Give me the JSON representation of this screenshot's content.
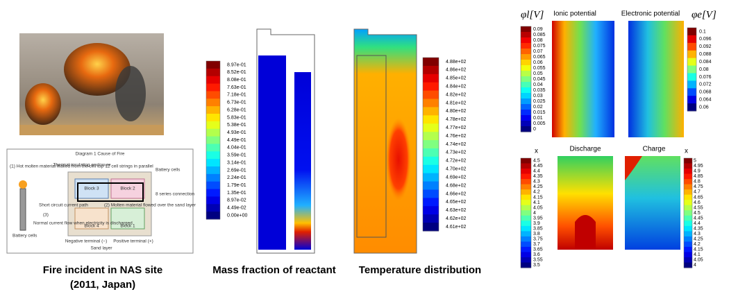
{
  "fire_photo_caption": [
    "Fire incident in NAS site",
    "(2011, Japan)"
  ],
  "diagram": {
    "title": "Diagram 1  Cause of Fire",
    "labels": [
      "(1) Hot molten material leaked from the cell top",
      "Thermal insulating enclosure",
      "12 cell strings in parallel",
      "Battery cells",
      "Block 3",
      "Block 2",
      "8 series connection",
      "Short circuit current path",
      "(3)",
      "(2) Molten material flowed over the sand layer",
      "Normal current flow when electricity is discharged",
      "Block 4",
      "Block 1",
      "Battery cells",
      "Negative terminal (−)",
      "Sand layer",
      "Positive terminal (+)"
    ]
  },
  "mass_fraction": {
    "caption": "Mass fraction of reactant",
    "colorbar": [
      "8.97e-01",
      "8.52e-01",
      "8.08e-01",
      "7.63e-01",
      "7.18e-01",
      "6.73e-01",
      "6.28e-01",
      "5.83e-01",
      "5.38e-01",
      "4.93e-01",
      "4.49e-01",
      "4.04e-01",
      "3.59e-01",
      "3.14e-01",
      "2.69e-01",
      "2.24e-01",
      "1.79e-01",
      "1.35e-01",
      "8.97e-02",
      "4.49e-02",
      "0.00e+00"
    ]
  },
  "temperature": {
    "caption": "Temperature distribution",
    "colorbar": [
      "4.88e+02",
      "4.86e+02",
      "4.85e+02",
      "4.84e+02",
      "4.82e+02",
      "4.81e+02",
      "4.80e+02",
      "4.78e+02",
      "4.77e+02",
      "4.76e+02",
      "4.74e+02",
      "4.73e+02",
      "4.72e+02",
      "4.70e+02",
      "4.69e+02",
      "4.68e+02",
      "4.66e+02",
      "4.65e+02",
      "4.63e+02",
      "4.62e+02",
      "4.61e+02"
    ]
  },
  "ionic_potential": {
    "title": "Ionic potential",
    "unit": "φl[V]",
    "colorbar": [
      "0.09",
      "0.085",
      "0.08",
      "0.075",
      "0.07",
      "0.065",
      "0.06",
      "0.055",
      "0.05",
      "0.045",
      "0.04",
      "0.035",
      "0.03",
      "0.025",
      "0.02",
      "0.015",
      "0.01",
      "0.005",
      "0"
    ]
  },
  "electronic_potential": {
    "title": "Electronic potential",
    "unit": "φe[V]",
    "colorbar": [
      "0.1",
      "0.096",
      "0.092",
      "0.088",
      "0.084",
      "0.08",
      "0.076",
      "0.072",
      "0.068",
      "0.064",
      "0.06"
    ]
  },
  "discharge": {
    "title": "Discharge",
    "unit": "x",
    "colorbar": [
      "4.5",
      "4.45",
      "4.4",
      "4.35",
      "4.3",
      "4.25",
      "4.2",
      "4.15",
      "4.1",
      "4.05",
      "4",
      "3.95",
      "3.9",
      "3.85",
      "3.8",
      "3.75",
      "3.7",
      "3.65",
      "3.6",
      "3.55",
      "3.5"
    ]
  },
  "charge": {
    "title": "Charge",
    "unit": "x",
    "colorbar": [
      "5",
      "4.95",
      "4.9",
      "4.85",
      "4.8",
      "4.75",
      "4.7",
      "4.65",
      "4.6",
      "4.55",
      "4.5",
      "4.45",
      "4.4",
      "4.35",
      "4.3",
      "4.25",
      "4.2",
      "4.15",
      "4.1",
      "4.05",
      "4"
    ]
  }
}
